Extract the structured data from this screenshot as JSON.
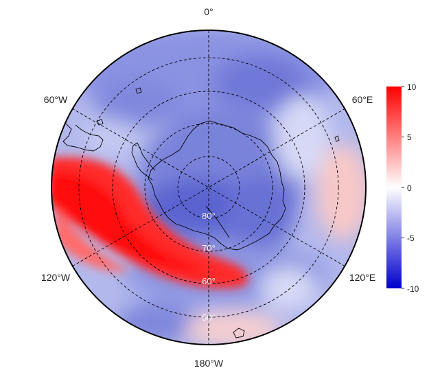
{
  "map": {
    "projection": "south-polar-stereographic",
    "colormap": [
      "#0000cc",
      "#ffffff",
      "#ff0000"
    ],
    "longitude_labels": {
      "top": "0°",
      "bottom": "180°W",
      "upper_left": "60°W",
      "upper_right": "60°E",
      "lower_left": "120°W",
      "lower_right": "120°E"
    },
    "latitude_labels": [
      "80°",
      "70°",
      "60°",
      "50°"
    ],
    "colorbar": {
      "min": -10,
      "max": 10,
      "ticks": [
        "10",
        "5",
        "0",
        "-5",
        "-10"
      ]
    }
  }
}
